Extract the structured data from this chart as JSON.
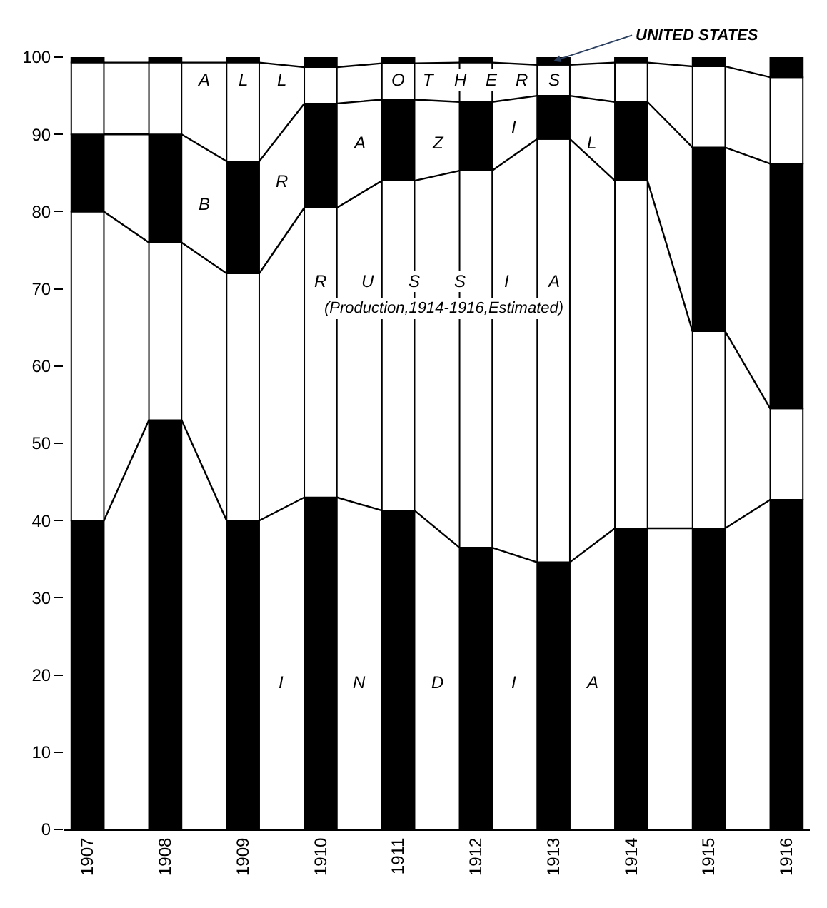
{
  "chart_data": {
    "type": "bar",
    "stacked": true,
    "categories": [
      "1907",
      "1908",
      "1909",
      "1910",
      "1911",
      "1912",
      "1913",
      "1914",
      "1915",
      "1916"
    ],
    "series": [
      {
        "color": "#000000",
        "values": [
          40,
          53,
          40,
          43,
          41.3,
          36.5,
          34.6,
          39,
          39,
          42.7
        ]
      },
      {
        "color": "#ffffff",
        "values": [
          40,
          23,
          32,
          37.5,
          42.7,
          48.8,
          54.8,
          45,
          25.5,
          11.8
        ]
      },
      {
        "color": "#000000",
        "values": [
          10,
          14,
          14.5,
          13.5,
          10.5,
          8.9,
          5.6,
          10.2,
          23.8,
          31.7
        ]
      },
      {
        "color": "#ffffff",
        "values": [
          9.3,
          9.3,
          12.8,
          4.7,
          4.7,
          5.1,
          4,
          5.1,
          10.5,
          11.2
        ]
      },
      {
        "color": "#000000",
        "values": [
          0.7,
          0.7,
          0.7,
          1.3,
          0.8,
          0.7,
          1,
          0.7,
          1.2,
          2.6
        ]
      }
    ],
    "ylim": [
      0,
      100
    ],
    "yticks": [
      0,
      10,
      20,
      30,
      40,
      50,
      60,
      70,
      80,
      90,
      100
    ],
    "annotations": [
      "I N D I A",
      "R U S S I A",
      "(Production,1914-1916,Estimated)",
      "B R A Z I L",
      "A L L   O T H E R S",
      {
        "text": "UNITED STATES",
        "x": "1913",
        "y": 99.5
      }
    ]
  }
}
